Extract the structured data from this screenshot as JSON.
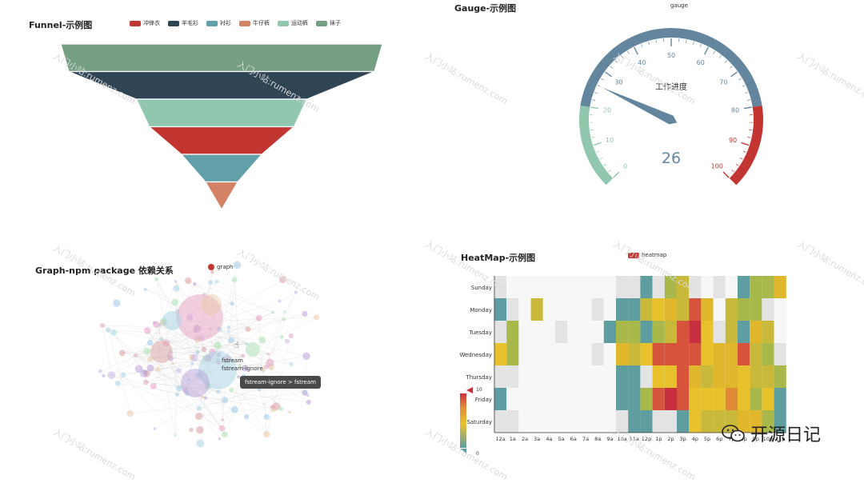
{
  "watermark": "入门小站:rumenz.com",
  "funnel": {
    "title": "Funnel-示例图",
    "legend": [
      "冲锋衣",
      "羊毛衫",
      "衬衫",
      "牛仔裤",
      "运动裤",
      "袜子"
    ],
    "colors": [
      "#c23531",
      "#2f4554",
      "#61a0a8",
      "#d48265",
      "#91c7ae",
      "#749f83"
    ],
    "chart_data": {
      "type": "funnel",
      "categories": [
        "袜子",
        "羊毛衫",
        "运动裤",
        "冲锋衣",
        "衬衫",
        "牛仔裤"
      ],
      "values": [
        100,
        95,
        53,
        45,
        25,
        10
      ]
    }
  },
  "gauge": {
    "title": "Gauge-示例图",
    "legend_label": "gauge",
    "detail_label": "工作进度",
    "value_text": "26",
    "chart_data": {
      "type": "gauge",
      "value": 26,
      "min": 0,
      "max": 100,
      "ticks": [
        "0",
        "10",
        "20",
        "30",
        "40",
        "50",
        "60",
        "70",
        "80",
        "90",
        "100"
      ],
      "bands": [
        {
          "to": 0.2,
          "color": "#91c7ae"
        },
        {
          "to": 0.8,
          "color": "#63869e"
        },
        {
          "to": 1.0,
          "color": "#c23531"
        }
      ]
    }
  },
  "graph": {
    "title": "Graph-npm package 依赖关系",
    "legend_label": "graph",
    "legend_color": "#c23531",
    "labels": [
      "fstream",
      "fstream-ignore"
    ],
    "tooltip": "fstream-ignore > fstream"
  },
  "heatmap": {
    "title": "HeatMap-示例图",
    "legend_label": "heatmap",
    "legend_color": "#c23531",
    "visual_max": "10",
    "visual_min": "0",
    "chart_data": {
      "type": "heatmap",
      "days": [
        "Sunday",
        "Monday",
        "Tuesday",
        "Wednesday",
        "Thursday",
        "Friday",
        "Saturday"
      ],
      "hours": [
        "12a",
        "1a",
        "2a",
        "3a",
        "4a",
        "5a",
        "6a",
        "7a",
        "8a",
        "9a",
        "10a",
        "11a",
        "12p",
        "1p",
        "2p",
        "3p",
        "4p",
        "5p",
        "6p",
        "7p",
        "8p",
        "9p",
        "10p",
        "11p"
      ],
      "values": [
        [
          1,
          0,
          0,
          0,
          0,
          0,
          0,
          0,
          0,
          0,
          1,
          1,
          2,
          1,
          3,
          4,
          1,
          0,
          1,
          0,
          2,
          3,
          3,
          5
        ],
        [
          2,
          1,
          0,
          4,
          0,
          0,
          0,
          0,
          1,
          0,
          2,
          2,
          4,
          6,
          5,
          4,
          8,
          5,
          0,
          4,
          3,
          3,
          1,
          0
        ],
        [
          1,
          3,
          0,
          0,
          0,
          1,
          0,
          0,
          0,
          2,
          3,
          3,
          2,
          3,
          4,
          8,
          9,
          6,
          1,
          4,
          2,
          5,
          4,
          0
        ],
        [
          6,
          3,
          0,
          0,
          0,
          0,
          0,
          0,
          1,
          0,
          5,
          4,
          6,
          8,
          8,
          8,
          8,
          6,
          5,
          5,
          8,
          4,
          3,
          1
        ],
        [
          1,
          1,
          0,
          0,
          0,
          0,
          0,
          0,
          0,
          0,
          2,
          2,
          1,
          6,
          6,
          8,
          5,
          4,
          5,
          5,
          6,
          4,
          4,
          3
        ],
        [
          2,
          0,
          0,
          0,
          0,
          0,
          0,
          0,
          0,
          0,
          2,
          2,
          3,
          8,
          9,
          8,
          6,
          6,
          6,
          7,
          6,
          3,
          6,
          2
        ],
        [
          1,
          1,
          0,
          0,
          0,
          0,
          0,
          0,
          0,
          0,
          1,
          2,
          2,
          1,
          1,
          2,
          6,
          4,
          4,
          4,
          5,
          5,
          3,
          2
        ]
      ]
    }
  },
  "badge": {
    "label": "开源日记"
  }
}
